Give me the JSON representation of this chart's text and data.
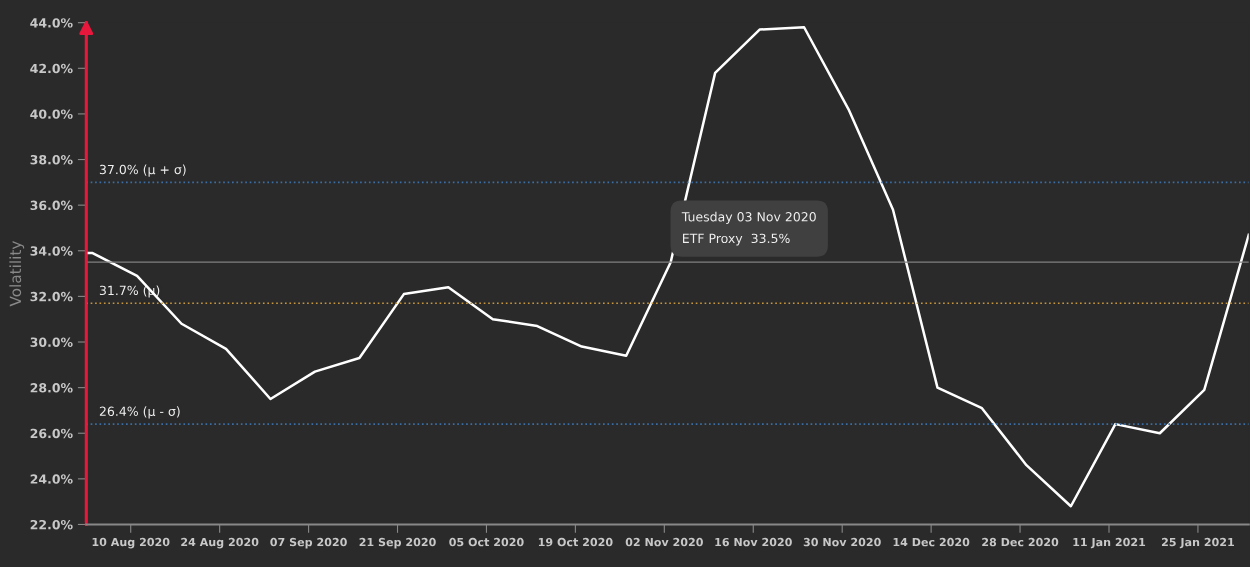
{
  "chart_data": {
    "type": "line",
    "ylabel": "Volatility",
    "x": [
      "2020-08-03",
      "2020-08-04",
      "2020-08-11",
      "2020-08-18",
      "2020-08-25",
      "2020-09-01",
      "2020-09-08",
      "2020-09-15",
      "2020-09-22",
      "2020-09-29",
      "2020-10-06",
      "2020-10-13",
      "2020-10-20",
      "2020-10-27",
      "2020-11-03",
      "2020-11-10",
      "2020-11-17",
      "2020-11-24",
      "2020-12-01",
      "2020-12-08",
      "2020-12-15",
      "2020-12-22",
      "2020-12-29",
      "2021-01-05",
      "2021-01-12",
      "2021-01-19",
      "2021-01-26",
      "2021-02-02"
    ],
    "series": [
      {
        "color": "#ffffff",
        "values": [
          33.9,
          33.9,
          32.9,
          30.8,
          29.7,
          27.5,
          28.7,
          29.3,
          32.1,
          32.4,
          31.0,
          30.7,
          29.8,
          29.4,
          33.5,
          41.8,
          43.7,
          43.8,
          40.2,
          35.8,
          28.0,
          27.1,
          24.6,
          22.8,
          26.4,
          26.0,
          27.9,
          34.7
        ]
      }
    ],
    "xlim": [
      "2020-08-03",
      "2021-02-02"
    ],
    "xticks": [
      {
        "value": "2020-08-10",
        "label": "10 Aug 2020"
      },
      {
        "value": "2020-08-24",
        "label": "24 Aug 2020"
      },
      {
        "value": "2020-09-07",
        "label": "07 Sep 2020"
      },
      {
        "value": "2020-09-21",
        "label": "21 Sep 2020"
      },
      {
        "value": "2020-10-05",
        "label": "05 Oct 2020"
      },
      {
        "value": "2020-10-19",
        "label": "19 Oct 2020"
      },
      {
        "value": "2020-11-02",
        "label": "02 Nov 2020"
      },
      {
        "value": "2020-11-16",
        "label": "16 Nov 2020"
      },
      {
        "value": "2020-11-30",
        "label": "30 Nov 2020"
      },
      {
        "value": "2020-12-14",
        "label": "14 Dec 2020"
      },
      {
        "value": "2020-12-28",
        "label": "28 Dec 2020"
      },
      {
        "value": "2021-01-11",
        "label": "11 Jan 2021"
      },
      {
        "value": "2021-01-25",
        "label": "25 Jan 2021"
      }
    ],
    "ylim": [
      22,
      44
    ],
    "yticks": [
      {
        "value": 22,
        "label": "22.0%"
      },
      {
        "value": 24,
        "label": "24.0%"
      },
      {
        "value": 26,
        "label": "26.0%"
      },
      {
        "value": 28,
        "label": "28.0%"
      },
      {
        "value": 30,
        "label": "30.0%"
      },
      {
        "value": 32,
        "label": "32.0%"
      },
      {
        "value": 34,
        "label": "34.0%"
      },
      {
        "value": 36,
        "label": "36.0%"
      },
      {
        "value": 38,
        "label": "38.0%"
      },
      {
        "value": 40,
        "label": "40.0%"
      },
      {
        "value": 42,
        "label": "42.0%"
      },
      {
        "value": 44,
        "label": "44.0%"
      }
    ],
    "ref_lines": [
      {
        "axis": "y",
        "value": 37.0,
        "label": "37.0% (μ + σ)",
        "color": "#3a6ea5",
        "line_style": "dotted"
      },
      {
        "axis": "y",
        "value": 31.7,
        "label": "31.7% (μ)",
        "color": "#c8963c",
        "line_style": "dotted"
      },
      {
        "axis": "y",
        "value": 26.4,
        "label": "26.4% (μ - σ)",
        "color": "#3a6ea5",
        "line_style": "dotted"
      },
      {
        "axis": "y",
        "value": 33.5,
        "color": "#808080",
        "line_style": "solid"
      }
    ],
    "annotations": [
      {
        "text": "Tuesday 03 Nov 2020\nETF Proxy  33.5%",
        "x": "2020-11-03",
        "y": 33.5
      }
    ],
    "marker": "none",
    "line_style": "solid",
    "legend": false,
    "grid": false
  }
}
